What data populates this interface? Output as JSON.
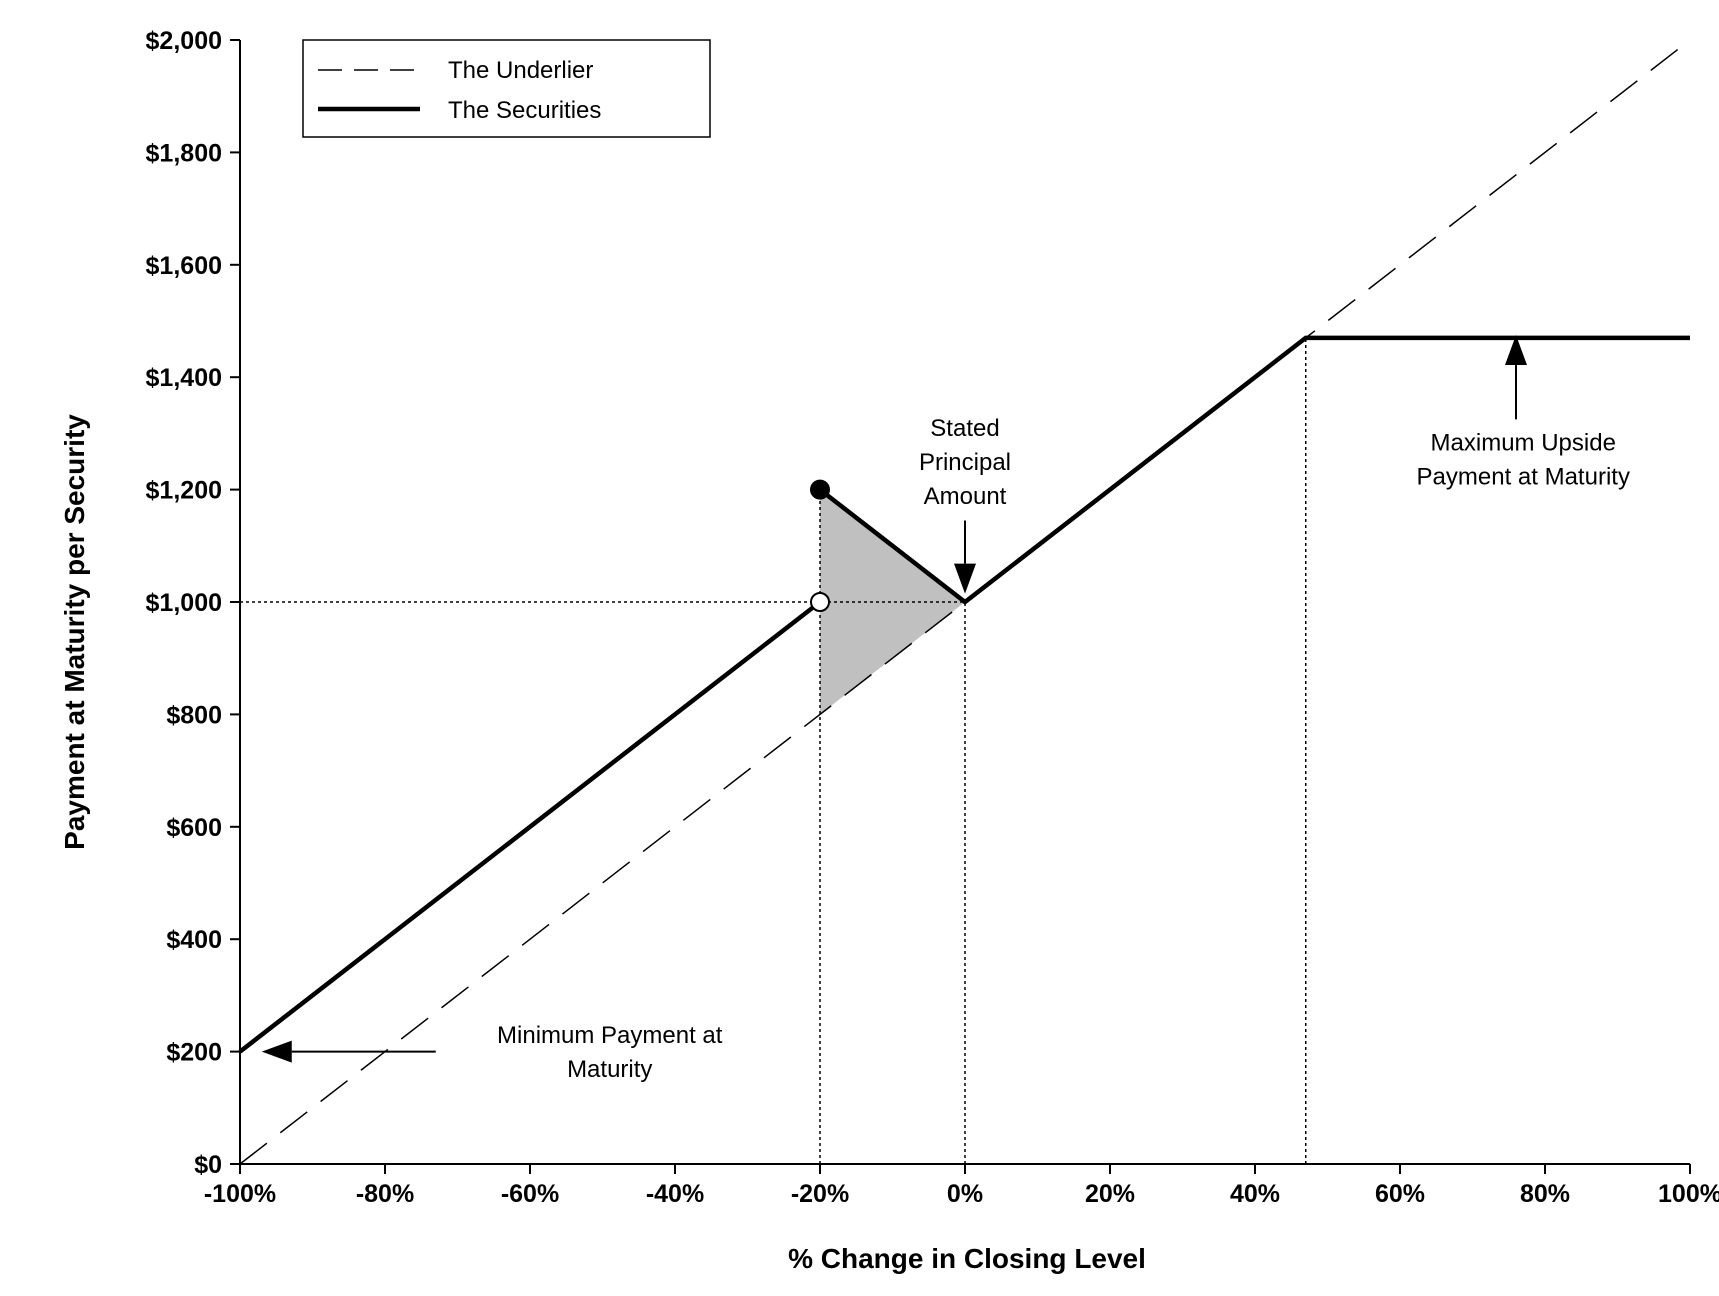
{
  "chart_data": {
    "type": "line",
    "title": "",
    "xlabel": "% Change in Closing Level",
    "ylabel": "Payment at Maturity per Security",
    "xlim": [
      -100,
      100
    ],
    "ylim": [
      0,
      2000
    ],
    "x_ticks": [
      -100,
      -80,
      -60,
      -40,
      -20,
      0,
      20,
      40,
      60,
      80,
      100
    ],
    "x_tick_labels": [
      "-100%",
      "-80%",
      "-60%",
      "-40%",
      "-20%",
      "0%",
      "20%",
      "40%",
      "60%",
      "80%",
      "100%"
    ],
    "y_ticks": [
      0,
      200,
      400,
      600,
      800,
      1000,
      1200,
      1400,
      1600,
      1800,
      2000
    ],
    "y_tick_labels": [
      "$0",
      "$200",
      "$400",
      "$600",
      "$800",
      "$1,000",
      "$1,200",
      "$1,400",
      "$1,600",
      "$1,800",
      "$2,000"
    ],
    "grid": false,
    "legend_position": "top-left",
    "series": [
      {
        "name": "The Underlier",
        "style": "dashed",
        "color": "#000000",
        "x": [
          -100,
          100
        ],
        "y": [
          0,
          2000
        ]
      },
      {
        "name": "The Securities",
        "style": "solid",
        "color": "#000000",
        "segments": [
          {
            "x": [
              -100,
              -20
            ],
            "y": [
              200,
              1000
            ]
          },
          {
            "x": [
              -20,
              0,
              47,
              100
            ],
            "y": [
              1200,
              1000,
              1470,
              1470
            ]
          }
        ]
      }
    ],
    "shaded_region": {
      "color": "#c0c0c0",
      "x": [
        -20,
        -20,
        0
      ],
      "y": [
        800,
        1200,
        1000
      ]
    },
    "markers": [
      {
        "x": -20,
        "y": 1200,
        "fill": "filled"
      },
      {
        "x": -20,
        "y": 1000,
        "fill": "open"
      }
    ],
    "reference_lines": [
      {
        "x": [
          -100,
          0
        ],
        "y": [
          1000,
          1000
        ]
      },
      {
        "x": [
          -20,
          -20
        ],
        "y": [
          0,
          1200
        ]
      },
      {
        "x": [
          0,
          0
        ],
        "y": [
          0,
          1000
        ]
      },
      {
        "x": [
          47,
          47
        ],
        "y": [
          0,
          1470
        ]
      }
    ],
    "annotations": [
      {
        "lines": [
          "Stated",
          "Principal",
          "Amount"
        ],
        "text_x": 0,
        "text_y": 1295,
        "arrow_from": [
          0,
          1145
        ],
        "arrow_to": [
          0,
          1015
        ]
      },
      {
        "lines": [
          "Maximum Upside",
          "Payment at Maturity"
        ],
        "text_x": 77,
        "text_y": 1270,
        "arrow_from": [
          76,
          1325
        ],
        "arrow_to": [
          76,
          1475
        ]
      },
      {
        "lines": [
          "Minimum Payment at",
          "Maturity"
        ],
        "text_x": -49,
        "text_y": 215,
        "arrow_from": [
          -73,
          200
        ],
        "arrow_to": [
          -97,
          200
        ]
      }
    ]
  }
}
